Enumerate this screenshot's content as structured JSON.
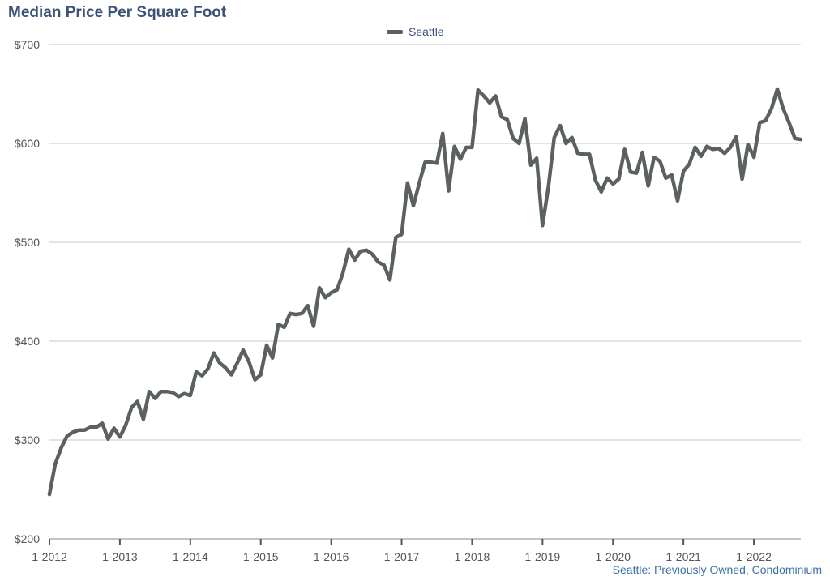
{
  "chart_data": {
    "type": "line",
    "title": "Median Price Per Square Foot",
    "xlabel": "",
    "ylabel": "",
    "source_note": "Seattle: Previously Owned, Condominium",
    "ylim": [
      200,
      700
    ],
    "y_ticks": [
      "$200",
      "$300",
      "$400",
      "$500",
      "$600",
      "$700"
    ],
    "x_ticks": [
      "1-2012",
      "1-2013",
      "1-2014",
      "1-2015",
      "1-2016",
      "1-2017",
      "1-2018",
      "1-2019",
      "1-2020",
      "1-2021",
      "1-2022"
    ],
    "x_range_months": [
      "2012-01",
      "2022-09"
    ],
    "grid": true,
    "legend_placement": "top-center",
    "series": [
      {
        "name": "Seattle",
        "color": "#5b615f",
        "start": "2012-01",
        "values": [
          245,
          276,
          292,
          304,
          308,
          310,
          310,
          313,
          313,
          317,
          301,
          312,
          303,
          315,
          333,
          339,
          321,
          349,
          342,
          349,
          349,
          348,
          344,
          347,
          345,
          369,
          365,
          372,
          388,
          378,
          373,
          366,
          378,
          391,
          379,
          361,
          366,
          396,
          383,
          417,
          414,
          428,
          427,
          428,
          436,
          415,
          454,
          444,
          449,
          452,
          469,
          493,
          482,
          491,
          492,
          488,
          480,
          477,
          462,
          505,
          508,
          560,
          537,
          560,
          581,
          581,
          580,
          610,
          552,
          597,
          584,
          596,
          596,
          654,
          648,
          641,
          648,
          627,
          624,
          605,
          600,
          625,
          578,
          585,
          517,
          556,
          606,
          618,
          600,
          606,
          590,
          589,
          589,
          563,
          551,
          565,
          559,
          564,
          594,
          571,
          570,
          591,
          557,
          586,
          582,
          565,
          568,
          542,
          572,
          579,
          596,
          587,
          597,
          594,
          595,
          590,
          596,
          607,
          564,
          599,
          586,
          621,
          623,
          635,
          655,
          635,
          621,
          605,
          604
        ]
      }
    ]
  }
}
